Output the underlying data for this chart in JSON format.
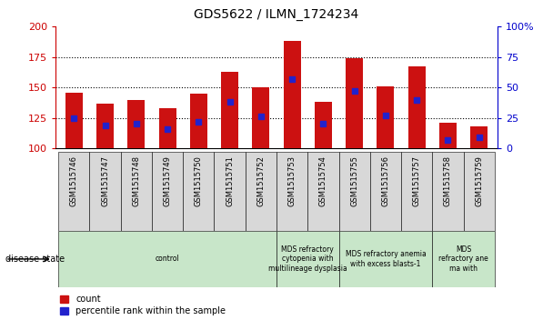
{
  "title": "GDS5622 / ILMN_1724234",
  "samples": [
    "GSM1515746",
    "GSM1515747",
    "GSM1515748",
    "GSM1515749",
    "GSM1515750",
    "GSM1515751",
    "GSM1515752",
    "GSM1515753",
    "GSM1515754",
    "GSM1515755",
    "GSM1515756",
    "GSM1515757",
    "GSM1515758",
    "GSM1515759"
  ],
  "count_values": [
    146,
    137,
    140,
    133,
    145,
    163,
    150,
    188,
    138,
    174,
    151,
    167,
    121,
    118
  ],
  "percentile_values": [
    125,
    119,
    120,
    116,
    122,
    138,
    126,
    157,
    120,
    147,
    127,
    140,
    107,
    109
  ],
  "bar_color": "#cc1111",
  "marker_color": "#2222cc",
  "ymin": 100,
  "ymax": 200,
  "yticks": [
    100,
    125,
    150,
    175,
    200
  ],
  "grid_yticks": [
    125,
    150,
    175
  ],
  "right_tick_labels": [
    "0",
    "25",
    "50",
    "75",
    "100%"
  ],
  "xlabel_color": "#cc0000",
  "right_ylabel_color": "#0000cc",
  "disease_groups": [
    {
      "label": "control",
      "start": 0,
      "end": 6,
      "color": "#c8e6c9"
    },
    {
      "label": "MDS refractory\ncytopenia with\nmultilineage dysplasia",
      "start": 7,
      "end": 8,
      "color": "#c8e6c9"
    },
    {
      "label": "MDS refractory anemia\nwith excess blasts-1",
      "start": 9,
      "end": 11,
      "color": "#c8e6c9"
    },
    {
      "label": "MDS\nrefractory ane\nma with",
      "start": 12,
      "end": 13,
      "color": "#c8e6c9"
    }
  ],
  "legend_labels": [
    "count",
    "percentile rank within the sample"
  ]
}
